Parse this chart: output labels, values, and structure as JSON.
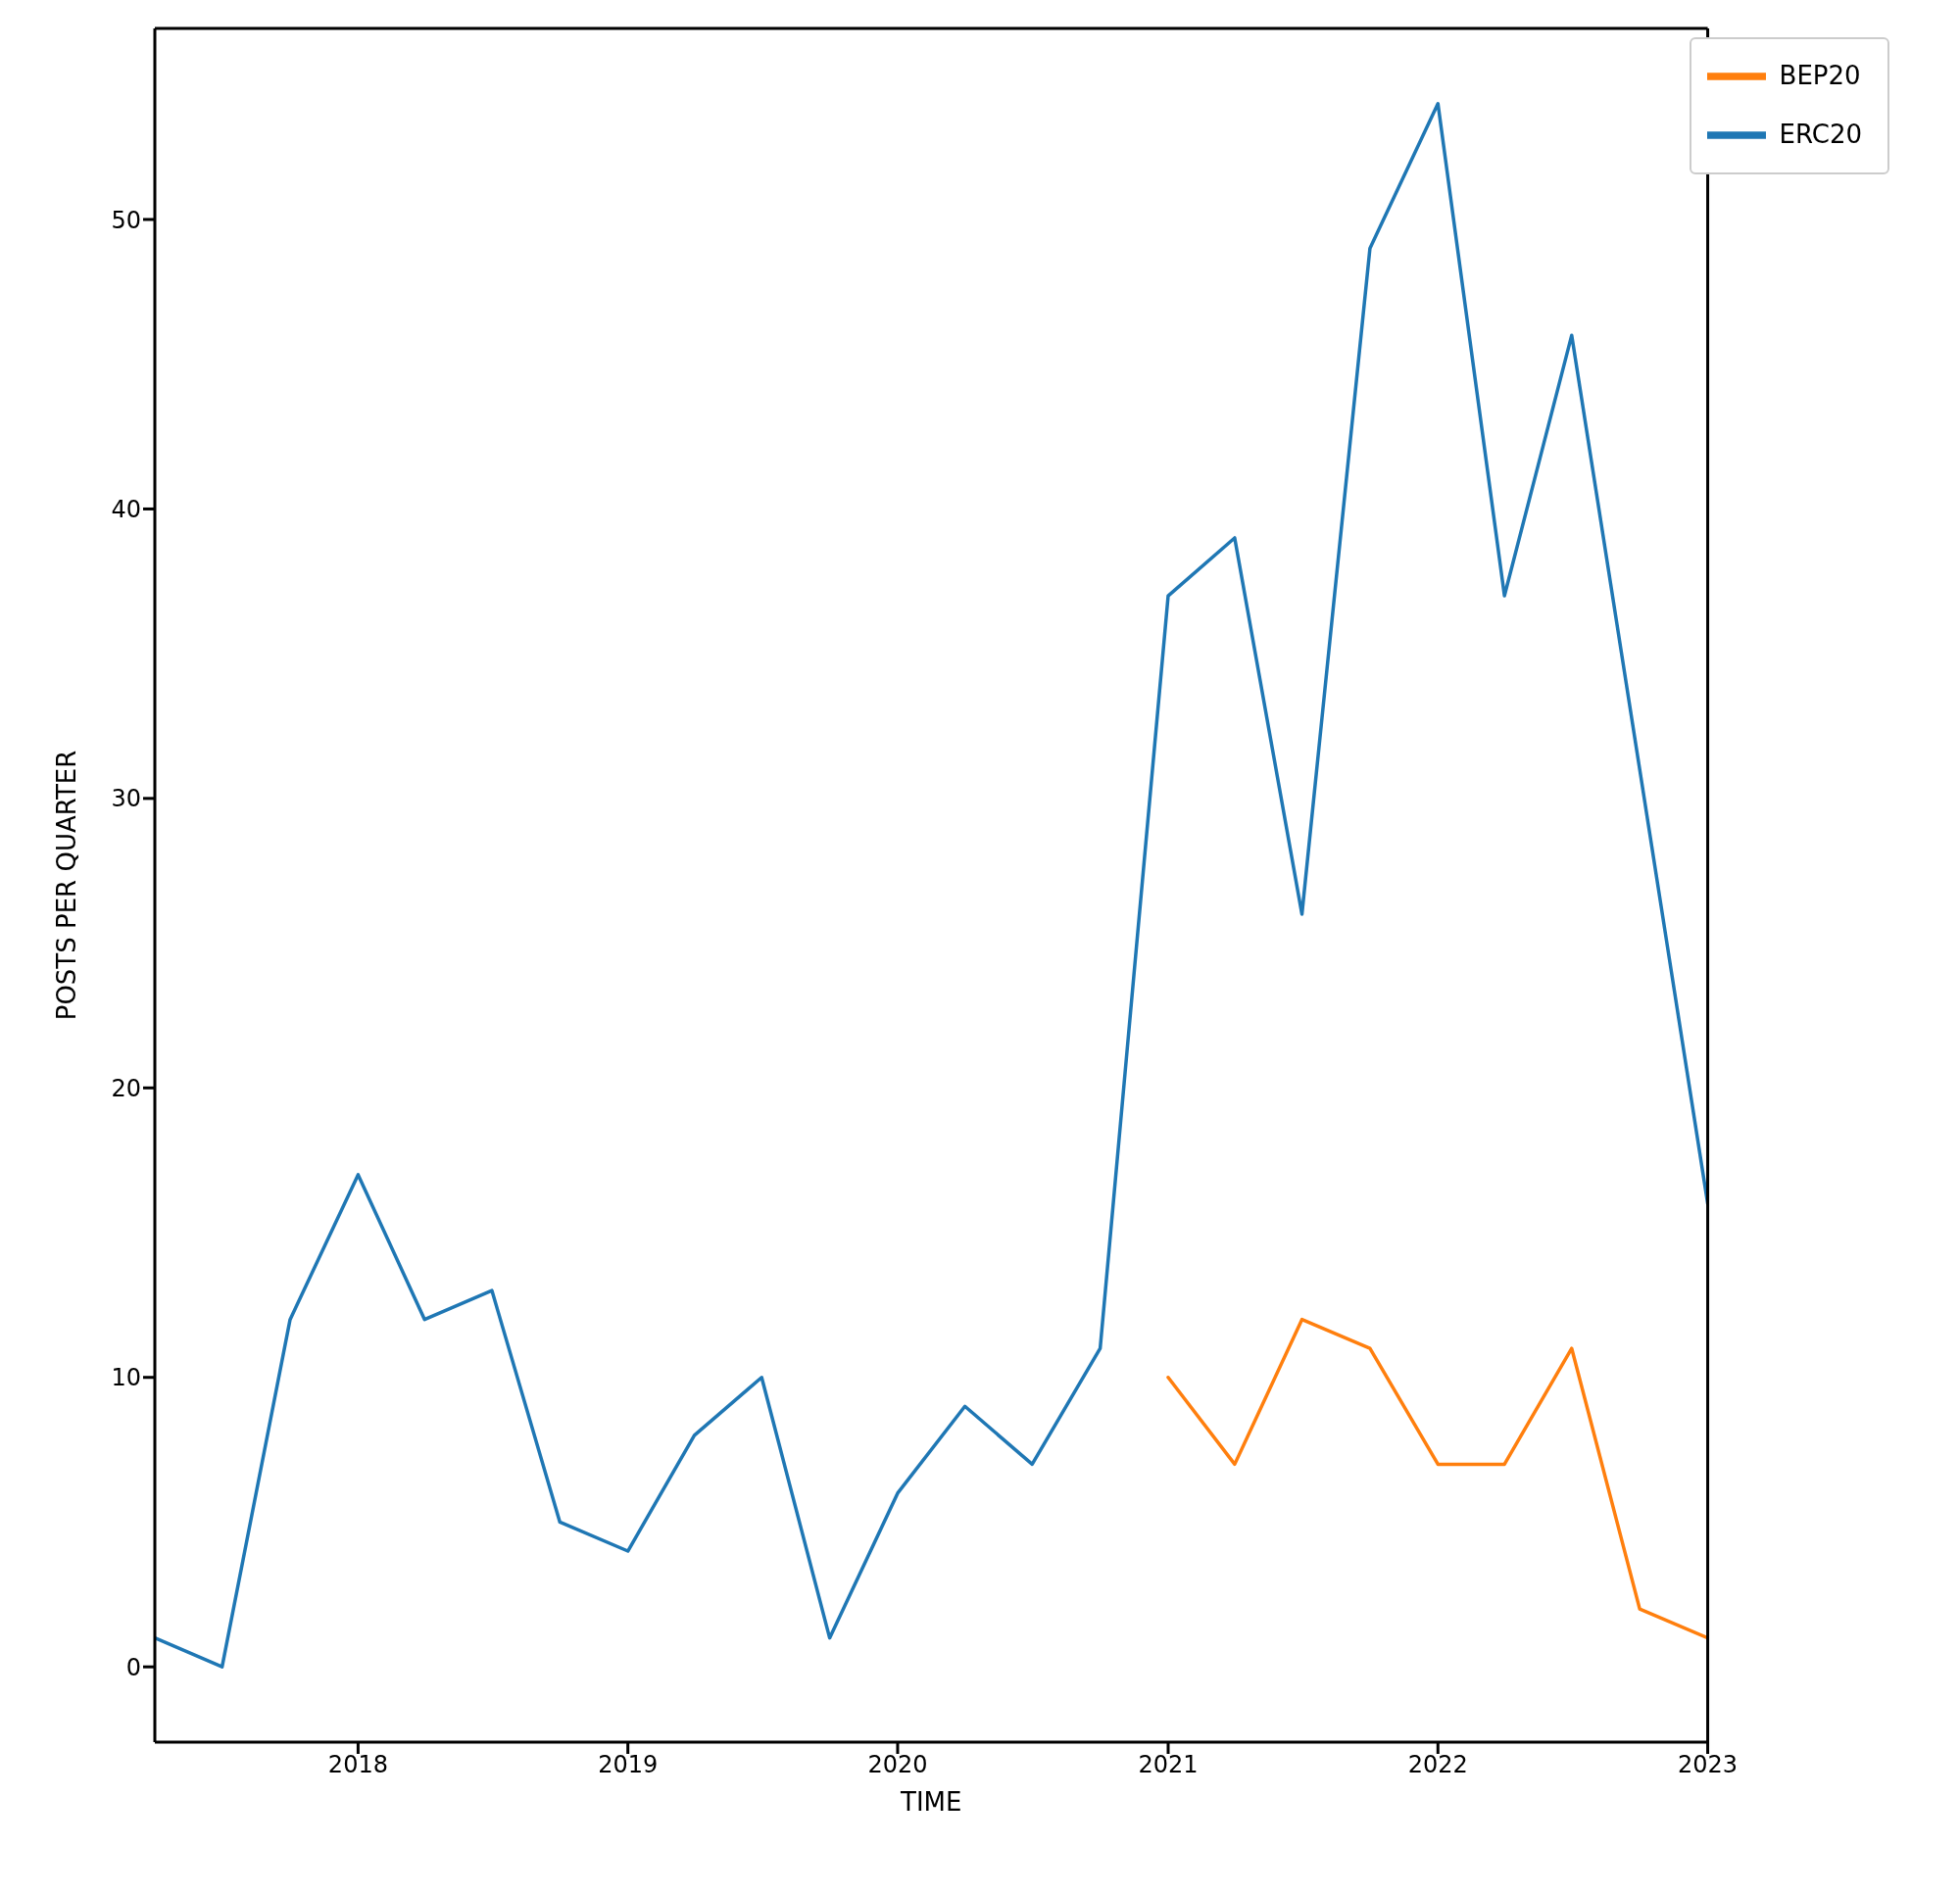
{
  "chart_data": {
    "type": "line",
    "xlabel": "TIME",
    "ylabel": "POSTS PER QUARTER",
    "xlim": [
      "2017-04-01",
      "2023-01-01"
    ],
    "xticks": [
      "2018",
      "2019",
      "2020",
      "2021",
      "2022",
      "2023"
    ],
    "ylim": [
      -2.6,
      56.6
    ],
    "yticks": [
      0,
      10,
      20,
      30,
      40,
      50
    ],
    "grid": false,
    "legend": "top right",
    "marker": "none",
    "line_style": "solid",
    "series": [
      {
        "name": "ERC20",
        "color": "#1f77b4",
        "x": [
          "2017-04-01",
          "2017-07-01",
          "2017-10-01",
          "2018-01-01",
          "2018-04-01",
          "2018-07-01",
          "2018-10-01",
          "2019-01-01",
          "2019-04-01",
          "2019-07-01",
          "2019-10-01",
          "2020-01-01",
          "2020-04-01",
          "2020-07-01",
          "2020-10-01",
          "2021-01-01",
          "2021-04-01",
          "2021-07-01",
          "2021-10-01",
          "2022-01-01",
          "2022-04-01",
          "2022-07-01",
          "2022-10-01",
          "2023-01-01"
        ],
        "values": [
          1,
          0,
          12,
          17,
          12,
          13,
          5,
          4,
          8,
          10,
          1,
          6,
          9,
          7,
          11,
          37,
          39,
          26,
          49,
          54,
          37,
          46,
          31,
          16
        ]
      },
      {
        "name": "BEP20",
        "color": "#ff7f0e",
        "x": [
          "2021-01-01",
          "2021-04-01",
          "2021-07-01",
          "2021-10-01",
          "2022-01-01",
          "2022-04-01",
          "2022-07-01",
          "2022-10-01",
          "2023-01-01"
        ],
        "values": [
          10,
          7,
          12,
          11,
          7,
          7,
          11,
          2,
          1
        ]
      }
    ]
  }
}
